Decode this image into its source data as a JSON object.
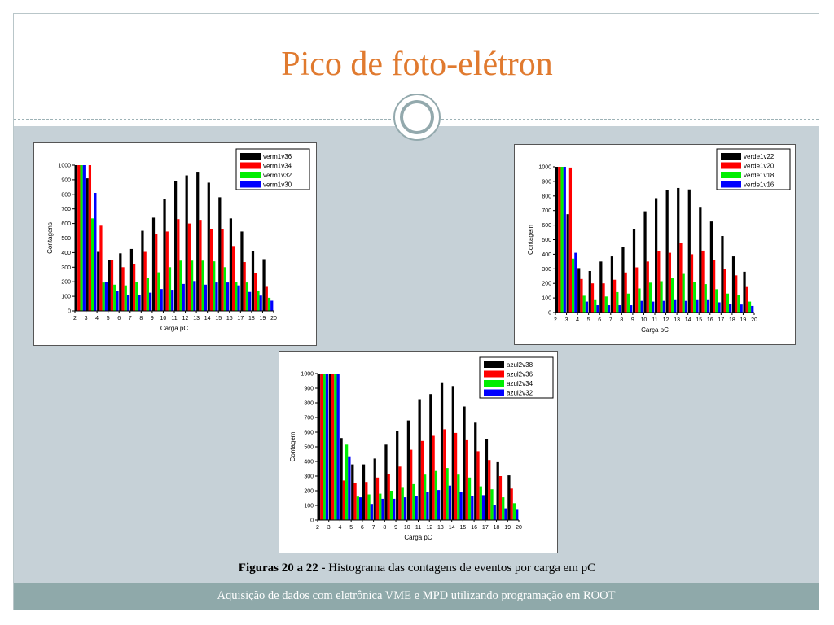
{
  "slide": {
    "title": "Pico de foto-elétron",
    "caption_bold": "Figuras 20 a 22 -",
    "caption_text": " Histograma das contagens de eventos por carga em pC",
    "footer": "Aquisição de dados com eletrônica VME e MPD utilizando programação em ROOT"
  },
  "colors": {
    "title": "#e07a2f",
    "panel": "#c6d1d7",
    "footer": "#8fa9aa",
    "series": [
      "#000000",
      "#ff0000",
      "#00ee00",
      "#0000ff"
    ]
  },
  "chart_data": [
    {
      "type": "bar",
      "xlabel": "Carga pC",
      "ylabel": "Contagens",
      "categories": [
        2,
        3,
        4,
        5,
        6,
        7,
        8,
        9,
        10,
        11,
        12,
        13,
        14,
        15,
        16,
        17,
        18,
        19,
        20
      ],
      "xlim": [
        2,
        20
      ],
      "ylim": [
        0,
        1000
      ],
      "yticks": [
        0,
        100,
        200,
        300,
        400,
        500,
        600,
        700,
        800,
        900,
        1000
      ],
      "legend_position": "top-right",
      "series": [
        {
          "name": "verm1v36",
          "values": [
            1000,
            910,
            405,
            350,
            395,
            425,
            550,
            640,
            770,
            890,
            930,
            955,
            880,
            780,
            635,
            545,
            410,
            355,
            0
          ]
        },
        {
          "name": "verm1v34",
          "values": [
            1000,
            1000,
            585,
            350,
            300,
            320,
            405,
            530,
            545,
            630,
            600,
            625,
            560,
            560,
            445,
            335,
            260,
            165,
            0
          ]
        },
        {
          "name": "verm1v32",
          "values": [
            1000,
            635,
            195,
            180,
            175,
            200,
            225,
            265,
            300,
            345,
            345,
            345,
            340,
            300,
            200,
            195,
            140,
            90,
            0
          ]
        },
        {
          "name": "verm1v30",
          "values": [
            1000,
            810,
            200,
            135,
            110,
            110,
            125,
            150,
            145,
            185,
            205,
            180,
            195,
            195,
            175,
            130,
            105,
            70,
            0
          ]
        }
      ]
    },
    {
      "type": "bar",
      "xlabel": "Carça pC",
      "ylabel": "Contagem",
      "categories": [
        2,
        3,
        4,
        5,
        6,
        7,
        8,
        9,
        10,
        11,
        12,
        13,
        14,
        15,
        16,
        17,
        18,
        19,
        20
      ],
      "xlim": [
        2,
        20
      ],
      "ylim": [
        0,
        1000
      ],
      "yticks": [
        0,
        100,
        200,
        300,
        400,
        500,
        600,
        700,
        800,
        900,
        1000
      ],
      "legend_position": "top-right",
      "series": [
        {
          "name": "verde1v22",
          "values": [
            1000,
            675,
            305,
            285,
            350,
            385,
            450,
            575,
            695,
            785,
            840,
            855,
            845,
            725,
            625,
            525,
            385,
            280,
            0
          ]
        },
        {
          "name": "verde1v20",
          "values": [
            1000,
            995,
            230,
            200,
            200,
            225,
            275,
            310,
            350,
            420,
            410,
            475,
            400,
            425,
            360,
            300,
            255,
            175,
            0
          ]
        },
        {
          "name": "verde1v18",
          "values": [
            1000,
            370,
            115,
            85,
            110,
            140,
            130,
            165,
            205,
            215,
            240,
            265,
            210,
            195,
            160,
            130,
            120,
            75,
            0
          ]
        },
        {
          "name": "verde1v16",
          "values": [
            1000,
            410,
            75,
            50,
            50,
            50,
            50,
            80,
            75,
            80,
            85,
            80,
            85,
            85,
            70,
            60,
            55,
            45,
            0
          ]
        }
      ]
    },
    {
      "type": "bar",
      "xlabel": "Carga pC",
      "ylabel": "Contagem",
      "categories": [
        2,
        3,
        4,
        5,
        6,
        7,
        8,
        9,
        10,
        11,
        12,
        13,
        14,
        15,
        16,
        17,
        18,
        19,
        20
      ],
      "xlim": [
        2,
        20
      ],
      "ylim": [
        0,
        1000
      ],
      "yticks": [
        0,
        100,
        200,
        300,
        400,
        500,
        600,
        700,
        800,
        900,
        1000
      ],
      "legend_position": "top-right",
      "series": [
        {
          "name": "azul2v38",
          "values": [
            1000,
            1000,
            560,
            380,
            380,
            420,
            515,
            610,
            680,
            825,
            860,
            935,
            915,
            775,
            665,
            555,
            395,
            305,
            0
          ]
        },
        {
          "name": "azul2v36",
          "values": [
            1000,
            1000,
            270,
            250,
            260,
            290,
            315,
            365,
            480,
            540,
            575,
            620,
            595,
            545,
            470,
            410,
            300,
            215,
            0
          ]
        },
        {
          "name": "azul2v34",
          "values": [
            1000,
            1000,
            515,
            160,
            175,
            180,
            200,
            220,
            245,
            310,
            335,
            355,
            310,
            290,
            230,
            210,
            155,
            115,
            0
          ]
        },
        {
          "name": "azul2v32",
          "values": [
            1000,
            1000,
            435,
            155,
            110,
            145,
            145,
            155,
            165,
            190,
            205,
            235,
            190,
            165,
            170,
            105,
            80,
            70,
            0
          ]
        }
      ]
    }
  ]
}
